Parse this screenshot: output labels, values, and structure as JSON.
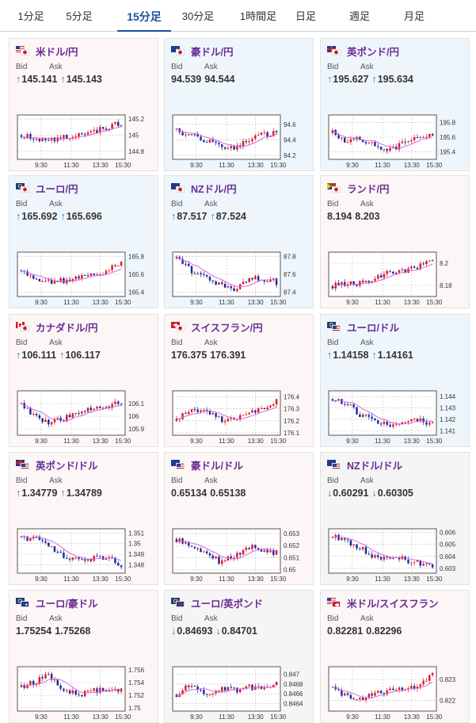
{
  "tabs": [
    {
      "label": "1分足",
      "active": false
    },
    {
      "label": "5分足",
      "active": false
    },
    {
      "label": "15分足",
      "active": true
    },
    {
      "label": "30分足",
      "active": false
    },
    {
      "label": "1時間足",
      "active": false
    },
    {
      "label": "日足",
      "active": false
    },
    {
      "label": "週足",
      "active": false
    },
    {
      "label": "月足",
      "active": false
    }
  ],
  "labels": {
    "bid": "Bid",
    "ask": "Ask"
  },
  "colors": {
    "pair_name": "#6a2a95",
    "arrow_up": "#1a7fb0",
    "arrow_down": "#d23a3a",
    "candle_up": "#e8141e",
    "candle_down": "#1a2b9a",
    "moving_average": "#d06be0",
    "active_tab": "#1a4fa0"
  },
  "x_ticks": [
    "9:30",
    "11:30",
    "13:30",
    "15:30"
  ],
  "cards": [
    {
      "name": "米ドル/円",
      "flag": [
        "us",
        "jp"
      ],
      "theme": "w",
      "bid": "145.141",
      "bid_dir": "up",
      "ask": "145.143",
      "ask_dir": "up",
      "chart": {
        "y_ticks": [
          "145.2",
          "145",
          "144.8"
        ],
        "y_min": 144.7,
        "y_max": 145.25
      }
    },
    {
      "name": "豪ドル/円",
      "flag": [
        "au",
        "jp"
      ],
      "theme": "b",
      "bid": "94.539",
      "bid_dir": "",
      "ask": "94.544",
      "ask_dir": "",
      "chart": {
        "y_ticks": [
          "94.6",
          "94.4",
          "94.2"
        ],
        "y_min": 94.15,
        "y_max": 94.72
      }
    },
    {
      "name": "英ポンド/円",
      "flag": [
        "gb",
        "jp"
      ],
      "theme": "b",
      "bid": "195.627",
      "bid_dir": "up",
      "ask": "195.634",
      "ask_dir": "up",
      "chart": {
        "y_ticks": [
          "195.8",
          "195.6",
          "195.4"
        ],
        "y_min": 195.3,
        "y_max": 195.9
      }
    },
    {
      "name": "ユーロ/円",
      "flag": [
        "eu",
        "jp"
      ],
      "theme": "b",
      "bid": "165.692",
      "bid_dir": "up",
      "ask": "165.696",
      "ask_dir": "up",
      "chart": {
        "y_ticks": [
          "165.8",
          "165.6",
          "165.4"
        ],
        "y_min": 165.35,
        "y_max": 165.85
      }
    },
    {
      "name": "NZドル/円",
      "flag": [
        "nz",
        "jp"
      ],
      "theme": "b",
      "bid": "87.517",
      "bid_dir": "up",
      "ask": "87.524",
      "ask_dir": "up",
      "chart": {
        "y_ticks": [
          "87.8",
          "87.6",
          "87.4"
        ],
        "y_min": 87.35,
        "y_max": 87.85
      }
    },
    {
      "name": "ランド/円",
      "flag": [
        "za",
        "jp"
      ],
      "theme": "w",
      "bid": "8.194",
      "bid_dir": "",
      "ask": "8.203",
      "ask_dir": "",
      "chart": {
        "y_ticks": [
          "8.2",
          "8.18"
        ],
        "y_min": 8.17,
        "y_max": 8.21
      }
    },
    {
      "name": "カナダドル/円",
      "flag": [
        "ca",
        "jp"
      ],
      "theme": "w",
      "bid": "106.111",
      "bid_dir": "up",
      "ask": "106.117",
      "ask_dir": "up",
      "chart": {
        "y_ticks": [
          "106.1",
          "106",
          "105.9"
        ],
        "y_min": 105.85,
        "y_max": 106.2
      }
    },
    {
      "name": "スイスフラン/円",
      "flag": [
        "ch",
        "jp"
      ],
      "theme": "w",
      "bid": "176.375",
      "bid_dir": "",
      "ask": "176.391",
      "ask_dir": "",
      "chart": {
        "y_ticks": [
          "176.4",
          "176.3",
          "176.2",
          "176.1"
        ],
        "y_min": 176.08,
        "y_max": 176.45
      }
    },
    {
      "name": "ユーロ/ドル",
      "flag": [
        "eu",
        "us"
      ],
      "theme": "b",
      "bid": "1.14158",
      "bid_dir": "up",
      "ask": "1.14161",
      "ask_dir": "up",
      "chart": {
        "y_ticks": [
          "1.144",
          "1.143",
          "1.142",
          "1.141"
        ],
        "y_min": 1.1406,
        "y_max": 1.1445
      }
    },
    {
      "name": "英ポンド/ドル",
      "flag": [
        "gb",
        "us"
      ],
      "theme": "w",
      "bid": "1.34779",
      "bid_dir": "up",
      "ask": "1.34789",
      "ask_dir": "up",
      "chart": {
        "y_ticks": [
          "1.351",
          "1.35",
          "1.349",
          "1.348"
        ],
        "y_min": 1.3472,
        "y_max": 1.3514
      }
    },
    {
      "name": "豪ドル/ドル",
      "flag": [
        "au",
        "us"
      ],
      "theme": "w",
      "bid": "0.65134",
      "bid_dir": "",
      "ask": "0.65138",
      "ask_dir": "",
      "chart": {
        "y_ticks": [
          "0.653",
          "0.652",
          "0.651",
          "0.65"
        ],
        "y_min": 0.6497,
        "y_max": 0.6534
      }
    },
    {
      "name": "NZドル/ドル",
      "flag": [
        "nz",
        "us"
      ],
      "theme": "p",
      "bid": "0.60291",
      "bid_dir": "down",
      "ask": "0.60305",
      "ask_dir": "down",
      "chart": {
        "y_ticks": [
          "0.606",
          "0.605",
          "0.604",
          "0.603"
        ],
        "y_min": 0.6026,
        "y_max": 0.6063
      }
    },
    {
      "name": "ユーロ/豪ドル",
      "flag": [
        "eu",
        "au"
      ],
      "theme": "w",
      "bid": "1.75254",
      "bid_dir": "",
      "ask": "1.75268",
      "ask_dir": "",
      "chart": {
        "y_ticks": [
          "1.756",
          "1.754",
          "1.752",
          "1.75"
        ],
        "y_min": 1.7495,
        "y_max": 1.7565
      }
    },
    {
      "name": "ユーロ/英ポンド",
      "flag": [
        "eu",
        "gb"
      ],
      "theme": "p",
      "bid": "0.84693",
      "bid_dir": "down",
      "ask": "0.84701",
      "ask_dir": "down",
      "chart": {
        "y_ticks": [
          "0.847",
          "0.8468",
          "0.8466",
          "0.8464"
        ],
        "y_min": 0.84625,
        "y_max": 0.84715
      }
    },
    {
      "name": "米ドル/スイスフラン",
      "flag": [
        "us",
        "ch"
      ],
      "theme": "w",
      "bid": "0.82281",
      "bid_dir": "",
      "ask": "0.82296",
      "ask_dir": "",
      "chart": {
        "y_ticks": [
          "0.823",
          "0.822"
        ],
        "y_min": 0.8215,
        "y_max": 0.8236
      }
    }
  ]
}
